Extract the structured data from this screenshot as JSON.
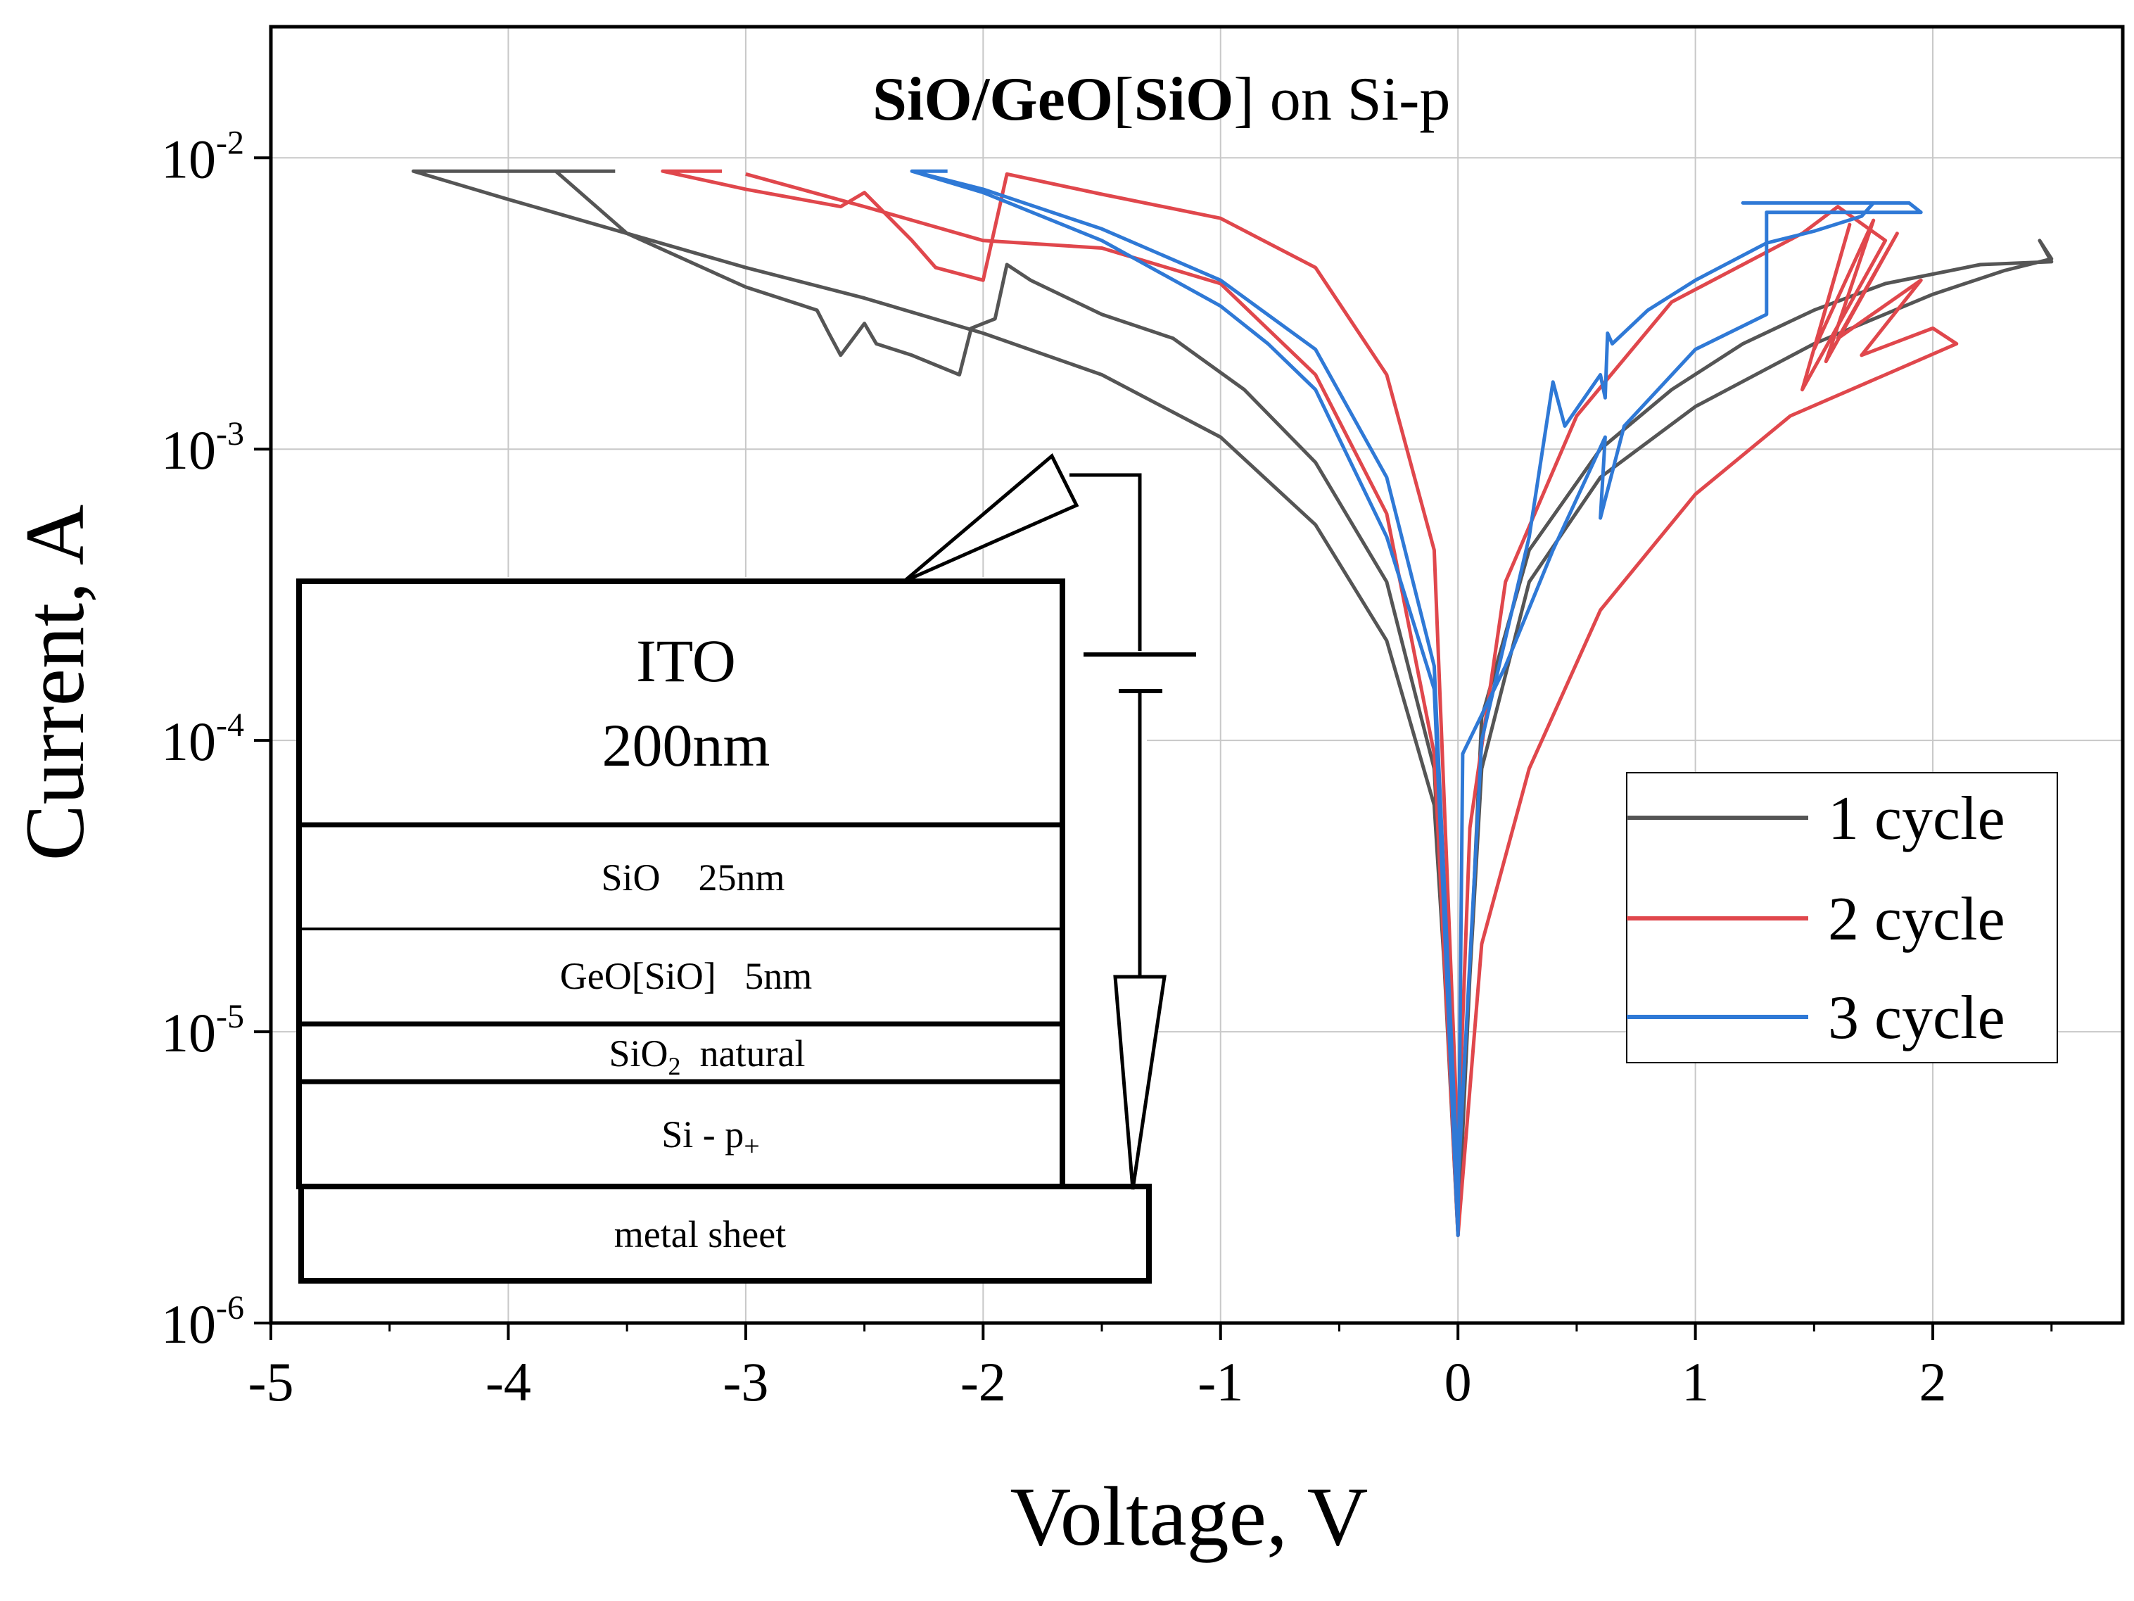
{
  "chart_data": {
    "type": "line",
    "title": {
      "bold": "SiO/GeO",
      "bracket_open": "[",
      "bold2": "SiO",
      "bracket_close": "]",
      "rest": " on Si-p"
    },
    "xlabel": "Voltage, V",
    "ylabel": "Current, A",
    "xlim": [
      -5,
      2.8
    ],
    "ylim_log10": [
      -6,
      -1.55
    ],
    "x_ticks": [
      -5,
      -4,
      -3,
      -2,
      -1,
      0,
      1,
      2
    ],
    "y_ticks": [
      {
        "base": "10",
        "exp": "-2",
        "value": -2
      },
      {
        "base": "10",
        "exp": "-3",
        "value": -3
      },
      {
        "base": "10",
        "exp": "-4",
        "value": -4
      },
      {
        "base": "10",
        "exp": "-5",
        "value": -5
      },
      {
        "base": "10",
        "exp": "-6",
        "value": -6
      }
    ],
    "grid": true,
    "legend_position": "right",
    "series": [
      {
        "name": "1 cycle",
        "color": "#555555",
        "points": [
          [
            -3.55,
            0.009
          ],
          [
            -4.4,
            0.009
          ],
          [
            -4.0,
            0.0072
          ],
          [
            -3.5,
            0.0055
          ],
          [
            -3.0,
            0.0042
          ],
          [
            -2.5,
            0.0033
          ],
          [
            -2.0,
            0.0025
          ],
          [
            -1.5,
            0.0018
          ],
          [
            -1.0,
            0.0011
          ],
          [
            -0.6,
            0.00055
          ],
          [
            -0.3,
            0.00022
          ],
          [
            -0.1,
            6e-05
          ],
          [
            0.0,
            3e-06
          ],
          [
            0.1,
            8e-05
          ],
          [
            0.3,
            0.00035
          ],
          [
            0.6,
            0.0008
          ],
          [
            1.0,
            0.0014
          ],
          [
            1.5,
            0.0023
          ],
          [
            2.0,
            0.0034
          ],
          [
            2.3,
            0.0041
          ],
          [
            2.5,
            0.0045
          ],
          [
            2.45,
            0.0052
          ],
          [
            2.5,
            0.0044
          ],
          [
            2.2,
            0.0043
          ],
          [
            1.8,
            0.0037
          ],
          [
            1.5,
            0.003
          ],
          [
            1.2,
            0.0023
          ],
          [
            0.9,
            0.0016
          ],
          [
            0.6,
            0.001
          ],
          [
            0.3,
            0.00045
          ],
          [
            0.1,
            0.00012
          ],
          [
            0.0,
            2e-06
          ],
          [
            -0.1,
            8e-05
          ],
          [
            -0.3,
            0.00035
          ],
          [
            -0.6,
            0.0009
          ],
          [
            -0.9,
            0.0016
          ],
          [
            -1.2,
            0.0024
          ],
          [
            -1.5,
            0.0029
          ],
          [
            -1.8,
            0.0038
          ],
          [
            -1.9,
            0.0043
          ],
          [
            -1.95,
            0.0028
          ],
          [
            -2.05,
            0.0026
          ],
          [
            -2.1,
            0.0018
          ],
          [
            -2.3,
            0.0021
          ],
          [
            -2.45,
            0.0023
          ],
          [
            -2.5,
            0.0027
          ],
          [
            -2.6,
            0.0021
          ],
          [
            -2.65,
            0.0025
          ],
          [
            -2.7,
            0.003
          ],
          [
            -3.0,
            0.0036
          ],
          [
            -3.5,
            0.0055
          ],
          [
            -3.8,
            0.009
          ]
        ]
      },
      {
        "name": "2 cycle",
        "color": "#e0474c",
        "points": [
          [
            -3.1,
            0.009
          ],
          [
            -3.35,
            0.009
          ],
          [
            -3.0,
            0.0078
          ],
          [
            -2.6,
            0.0068
          ],
          [
            -2.5,
            0.0076
          ],
          [
            -2.3,
            0.0052
          ],
          [
            -2.2,
            0.0042
          ],
          [
            -2.0,
            0.0038
          ],
          [
            -1.9,
            0.0088
          ],
          [
            -1.5,
            0.0075
          ],
          [
            -1.0,
            0.0062
          ],
          [
            -0.6,
            0.0042
          ],
          [
            -0.3,
            0.0018
          ],
          [
            -0.1,
            0.00045
          ],
          [
            0.0,
            4e-06
          ],
          [
            0.05,
            5e-05
          ],
          [
            0.2,
            0.00035
          ],
          [
            0.5,
            0.0013
          ],
          [
            0.9,
            0.0032
          ],
          [
            1.2,
            0.0043
          ],
          [
            1.45,
            0.0055
          ],
          [
            1.6,
            0.0068
          ],
          [
            1.8,
            0.0052
          ],
          [
            1.45,
            0.0016
          ],
          [
            1.65,
            0.0059
          ],
          [
            1.5,
            0.0022
          ],
          [
            1.75,
            0.0061
          ],
          [
            1.55,
            0.002
          ],
          [
            1.85,
            0.0055
          ],
          [
            1.6,
            0.0024
          ],
          [
            1.95,
            0.0038
          ],
          [
            1.7,
            0.0021
          ],
          [
            2.0,
            0.0026
          ],
          [
            2.1,
            0.0023
          ],
          [
            1.8,
            0.0018
          ],
          [
            1.4,
            0.0013
          ],
          [
            1.0,
            0.0007
          ],
          [
            0.6,
            0.00028
          ],
          [
            0.3,
            8e-05
          ],
          [
            0.1,
            2e-05
          ],
          [
            0.0,
            2e-06
          ],
          [
            -0.1,
            9e-05
          ],
          [
            -0.3,
            0.0006
          ],
          [
            -0.6,
            0.0018
          ],
          [
            -1.0,
            0.0037
          ],
          [
            -1.5,
            0.0049
          ],
          [
            -2.0,
            0.0052
          ],
          [
            -2.5,
            0.0068
          ],
          [
            -3.0,
            0.0088
          ]
        ]
      },
      {
        "name": "3 cycle",
        "color": "#2f79d6",
        "points": [
          [
            -2.15,
            0.009
          ],
          [
            -2.3,
            0.009
          ],
          [
            -2.0,
            0.0078
          ],
          [
            -1.5,
            0.0057
          ],
          [
            -1.0,
            0.0038
          ],
          [
            -0.6,
            0.0022
          ],
          [
            -0.3,
            0.0008
          ],
          [
            -0.1,
            0.00018
          ],
          [
            0.0,
            3e-06
          ],
          [
            0.1,
            0.0001
          ],
          [
            0.3,
            0.0005
          ],
          [
            0.4,
            0.0017
          ],
          [
            0.45,
            0.0012
          ],
          [
            0.6,
            0.0018
          ],
          [
            0.62,
            0.0015
          ],
          [
            0.63,
            0.0025
          ],
          [
            0.65,
            0.0023
          ],
          [
            0.8,
            0.003
          ],
          [
            1.0,
            0.0038
          ],
          [
            1.3,
            0.0051
          ],
          [
            1.5,
            0.0056
          ],
          [
            1.7,
            0.0063
          ],
          [
            1.75,
            0.007
          ],
          [
            1.2,
            0.007
          ],
          [
            1.9,
            0.007
          ],
          [
            1.95,
            0.0065
          ],
          [
            1.3,
            0.0065
          ],
          [
            1.3,
            0.0029
          ],
          [
            1.0,
            0.0022
          ],
          [
            0.7,
            0.0012
          ],
          [
            0.6,
            0.00058
          ],
          [
            0.62,
            0.0011
          ],
          [
            0.4,
            0.00045
          ],
          [
            0.2,
            0.00018
          ],
          [
            0.02,
            9e-05
          ],
          [
            0.0,
            2e-06
          ],
          [
            -0.1,
            0.00015
          ],
          [
            -0.3,
            0.0005
          ],
          [
            -0.6,
            0.0016
          ],
          [
            -0.8,
            0.0023
          ],
          [
            -1.0,
            0.0031
          ],
          [
            -1.5,
            0.0052
          ],
          [
            -2.0,
            0.0076
          ],
          [
            -2.3,
            0.009
          ]
        ]
      }
    ],
    "inset": {
      "layers": [
        {
          "lines": [
            "ITO",
            "200nm"
          ]
        },
        {
          "text": "SiO    25nm"
        },
        {
          "text": "GeO[SiO]   5nm"
        },
        {
          "text": "SiO",
          "sub": "2",
          "rest": "  natural"
        },
        {
          "text": "Si - p",
          "sub": "+"
        }
      ],
      "base": "metal sheet"
    }
  }
}
